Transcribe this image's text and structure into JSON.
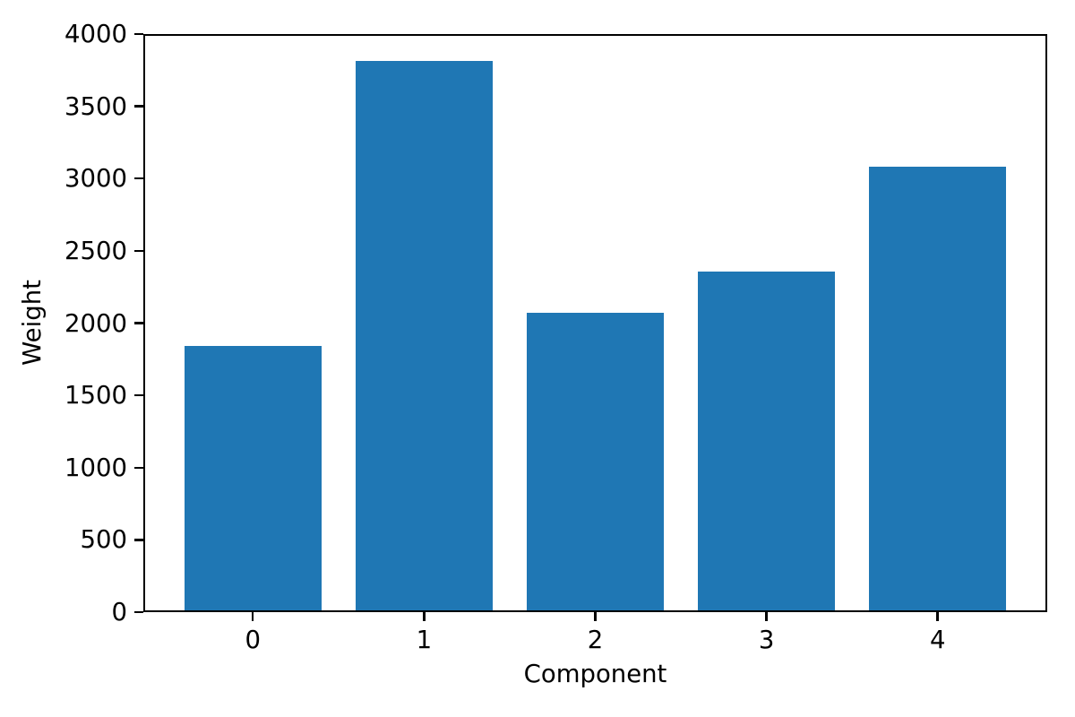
{
  "chart_data": {
    "type": "bar",
    "xlabel": "Component",
    "ylabel": "Weight",
    "categories": [
      "0",
      "1",
      "2",
      "3",
      "4"
    ],
    "values": [
      1840,
      3815,
      2070,
      2355,
      3080
    ],
    "ylim": [
      0,
      4000
    ],
    "xlim": [
      -0.64,
      4.64
    ],
    "yticks": [
      0,
      500,
      1000,
      1500,
      2000,
      2500,
      3000,
      3500,
      4000
    ],
    "bar_width": 0.8,
    "bar_color": "#1f77b4",
    "axis_color": "#000000",
    "grid": false,
    "legend": null
  }
}
